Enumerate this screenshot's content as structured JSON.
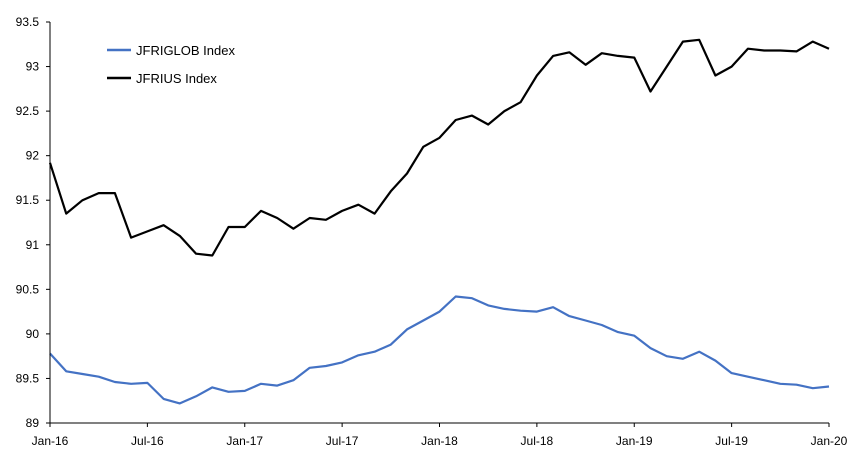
{
  "chart_data": {
    "type": "line",
    "title": "",
    "xlabel": "",
    "ylabel": "",
    "x_ticks": [
      "Jan-16",
      "Jul-16",
      "Jan-17",
      "Jul-17",
      "Jan-18",
      "Jul-18",
      "Jan-19",
      "Jul-19",
      "Jan-20"
    ],
    "ylim": [
      89,
      93.5
    ],
    "y_ticks": [
      "89",
      "89.5",
      "90",
      "90.5",
      "91",
      "91.5",
      "92",
      "92.5",
      "93",
      "93.5"
    ],
    "grid": false,
    "legend": "top-left",
    "series": [
      {
        "name": "JFRIGLOB Index",
        "color": "#4472C4",
        "x": [
          "2016-01",
          "2016-02",
          "2016-03",
          "2016-04",
          "2016-05",
          "2016-06",
          "2016-07",
          "2016-08",
          "2016-09",
          "2016-10",
          "2016-11",
          "2016-12",
          "2017-01",
          "2017-02",
          "2017-03",
          "2017-04",
          "2017-05",
          "2017-06",
          "2017-07",
          "2017-08",
          "2017-09",
          "2017-10",
          "2017-11",
          "2017-12",
          "2018-01",
          "2018-02",
          "2018-03",
          "2018-04",
          "2018-05",
          "2018-06",
          "2018-07",
          "2018-08",
          "2018-09",
          "2018-10",
          "2018-11",
          "2018-12",
          "2019-01",
          "2019-02",
          "2019-03",
          "2019-04",
          "2019-05",
          "2019-06",
          "2019-07",
          "2019-08",
          "2019-09",
          "2019-10",
          "2019-11",
          "2019-12",
          "2020-01"
        ],
        "values": [
          89.78,
          89.58,
          89.55,
          89.52,
          89.46,
          89.44,
          89.45,
          89.27,
          89.22,
          89.3,
          89.4,
          89.35,
          89.36,
          89.44,
          89.42,
          89.48,
          89.62,
          89.64,
          89.68,
          89.76,
          89.8,
          89.88,
          90.05,
          90.15,
          90.25,
          90.42,
          90.4,
          90.32,
          90.28,
          90.26,
          90.25,
          90.3,
          90.2,
          90.15,
          90.1,
          90.02,
          89.98,
          89.84,
          89.75,
          89.72,
          89.8,
          89.7,
          89.56,
          89.52,
          89.48,
          89.44,
          89.43,
          89.39,
          89.41
        ]
      },
      {
        "name": "JFRIUS Index",
        "color": "#000000",
        "x": [
          "2016-01",
          "2016-02",
          "2016-03",
          "2016-04",
          "2016-05",
          "2016-06",
          "2016-07",
          "2016-08",
          "2016-09",
          "2016-10",
          "2016-11",
          "2016-12",
          "2017-01",
          "2017-02",
          "2017-03",
          "2017-04",
          "2017-05",
          "2017-06",
          "2017-07",
          "2017-08",
          "2017-09",
          "2017-10",
          "2017-11",
          "2017-12",
          "2018-01",
          "2018-02",
          "2018-03",
          "2018-04",
          "2018-05",
          "2018-06",
          "2018-07",
          "2018-08",
          "2018-09",
          "2018-10",
          "2018-11",
          "2018-12",
          "2019-01",
          "2019-02",
          "2019-03",
          "2019-04",
          "2019-05",
          "2019-06",
          "2019-07",
          "2019-08",
          "2019-09",
          "2019-10",
          "2019-11",
          "2019-12",
          "2020-01"
        ],
        "values": [
          91.92,
          91.35,
          91.5,
          91.58,
          91.58,
          91.08,
          91.15,
          91.22,
          91.1,
          90.9,
          90.88,
          91.2,
          91.2,
          91.38,
          91.3,
          91.18,
          91.3,
          91.28,
          91.38,
          91.45,
          91.35,
          91.6,
          91.8,
          92.1,
          92.2,
          92.4,
          92.45,
          92.35,
          92.5,
          92.6,
          92.9,
          93.12,
          93.16,
          93.02,
          93.15,
          93.12,
          93.1,
          92.72,
          93.0,
          93.28,
          93.3,
          92.9,
          93.0,
          93.2,
          93.18,
          93.18,
          93.17,
          93.28,
          93.2
        ]
      }
    ]
  }
}
